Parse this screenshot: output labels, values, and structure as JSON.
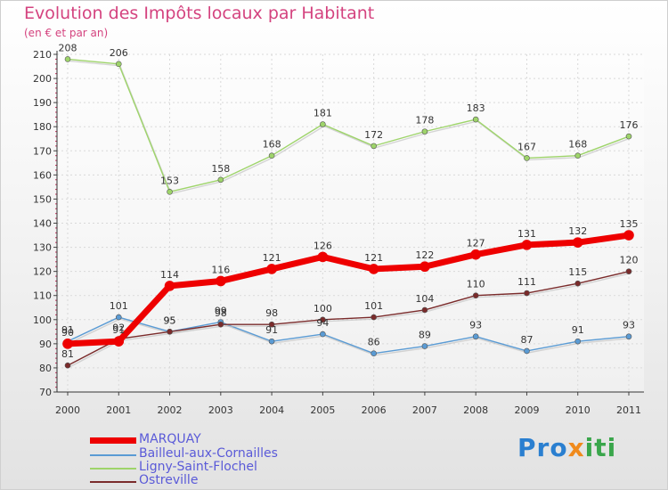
{
  "chart_data": {
    "type": "line",
    "title": "Evolution des Impôts locaux par Habitant",
    "subtitle": "(en € et par an)",
    "categories": [
      "2000",
      "2001",
      "2002",
      "2003",
      "2004",
      "2005",
      "2006",
      "2007",
      "2008",
      "2009",
      "2010",
      "2011"
    ],
    "ylim": [
      70,
      210
    ],
    "yticks": [
      70,
      80,
      90,
      100,
      110,
      120,
      130,
      140,
      150,
      160,
      170,
      180,
      190,
      200,
      210
    ],
    "series": [
      {
        "name": "MARQUAY",
        "color": "#ee0000",
        "values": [
          90,
          91,
          114,
          116,
          121,
          126,
          121,
          122,
          127,
          131,
          132,
          135
        ]
      },
      {
        "name": "Bailleul-aux-Cornailles",
        "color": "#5a9bd4",
        "values": [
          91,
          101,
          95,
          99,
          91,
          94,
          86,
          89,
          93,
          87,
          91,
          93
        ]
      },
      {
        "name": "Ligny-Saint-Flochel",
        "color": "#9ed46a",
        "values": [
          208,
          206,
          153,
          158,
          168,
          181,
          172,
          178,
          183,
          167,
          168,
          176
        ]
      },
      {
        "name": "Ostreville",
        "color": "#7a2b2b",
        "values": [
          81,
          92,
          95,
          98,
          98,
          100,
          101,
          104,
          110,
          111,
          115,
          120
        ]
      }
    ]
  },
  "legend": {
    "items": [
      {
        "label": "MARQUAY"
      },
      {
        "label": "Bailleul-aux-Cornailles"
      },
      {
        "label": "Ligny-Saint-Flochel"
      },
      {
        "label": "Ostreville"
      }
    ]
  },
  "logo": {
    "part1": "Pro",
    "part2": "x",
    "part3": "iti"
  }
}
